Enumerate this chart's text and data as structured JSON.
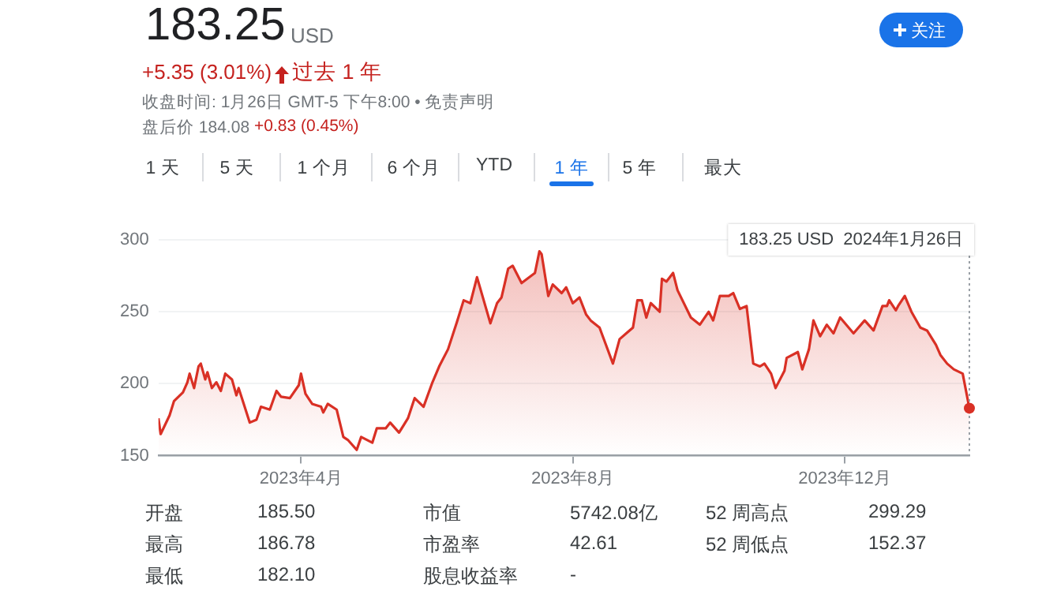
{
  "chart_data": {
    "type": "area",
    "title": "183.25",
    "annotations": [
      "USD",
      "+5.35 (3.01%)",
      "过去 1 年",
      "收盘时间: 1月26日 GMT-5 下午8:00 • 免责声明",
      "盘后价 184.08",
      "+0.83 (0.45%)",
      "关注",
      "1 天",
      "5 天",
      "1 个月",
      "6 个月",
      "YTD",
      "1 年",
      "5 年",
      "最大",
      "开盘",
      "185.50",
      "最高",
      "186.78",
      "最低",
      "182.10",
      "市值",
      "5742.08亿",
      "市盈率",
      "42.61",
      "股息收益率",
      "-",
      "52 周高点",
      "299.29",
      "52 周低点",
      "152.37",
      "183.25 USD  2024年1月26日"
    ],
    "x": [
      "2023-01-27",
      "2023-01-28",
      "2023-02-01",
      "2023-02-03",
      "2023-02-07",
      "2023-02-09",
      "2023-02-10",
      "2023-02-12",
      "2023-02-14",
      "2023-02-15",
      "2023-02-17",
      "2023-02-18",
      "2023-02-20",
      "2023-02-22",
      "2023-02-24",
      "2023-02-26",
      "2023-03-01",
      "2023-03-03",
      "2023-03-04",
      "2023-03-09",
      "2023-03-12",
      "2023-03-14",
      "2023-03-18",
      "2023-03-21",
      "2023-03-23",
      "2023-03-27",
      "2023-03-31",
      "2023-04-01",
      "2023-04-03",
      "2023-04-06",
      "2023-04-10",
      "2023-04-11",
      "2023-04-13",
      "2023-04-17",
      "2023-04-20",
      "2023-04-22",
      "2023-04-26",
      "2023-04-28",
      "2023-05-03",
      "2023-05-05",
      "2023-05-09",
      "2023-05-11",
      "2023-05-15",
      "2023-05-19",
      "2023-05-22",
      "2023-05-26",
      "2023-05-30",
      "2023-06-02",
      "2023-06-06",
      "2023-06-10",
      "2023-06-13",
      "2023-06-16",
      "2023-06-19",
      "2023-06-22",
      "2023-06-25",
      "2023-06-28",
      "2023-06-30",
      "2023-07-03",
      "2023-07-05",
      "2023-07-09",
      "2023-07-15",
      "2023-07-17",
      "2023-07-18",
      "2023-07-21",
      "2023-07-23",
      "2023-07-27",
      "2023-07-29",
      "2023-08-01",
      "2023-08-04",
      "2023-08-07",
      "2023-08-09",
      "2023-08-13",
      "2023-08-19",
      "2023-08-22",
      "2023-08-25",
      "2023-08-28",
      "2023-08-30",
      "2023-09-01",
      "2023-09-03",
      "2023-09-05",
      "2023-09-09",
      "2023-09-10",
      "2023-09-12",
      "2023-09-15",
      "2023-09-17",
      "2023-09-23",
      "2023-09-27",
      "2023-10-01",
      "2023-10-03",
      "2023-10-06",
      "2023-10-10",
      "2023-10-12",
      "2023-10-15",
      "2023-10-18",
      "2023-10-21",
      "2023-10-24",
      "2023-10-26",
      "2023-10-29",
      "2023-10-31",
      "2023-11-04",
      "2023-11-05",
      "2023-11-10",
      "2023-11-12",
      "2023-11-15",
      "2023-11-17",
      "2023-11-20",
      "2023-11-23",
      "2023-11-26",
      "2023-11-29",
      "2023-12-05",
      "2023-12-10",
      "2023-12-14",
      "2023-12-18",
      "2023-12-20",
      "2023-12-21",
      "2023-12-24",
      "2023-12-25",
      "2023-12-28",
      "2023-12-31",
      "2024-01-04",
      "2024-01-07",
      "2024-01-11",
      "2024-01-13",
      "2024-01-16",
      "2024-01-19",
      "2024-01-23",
      "2024-01-26"
    ],
    "series": [
      {
        "color": "#d93025",
        "values": [
          176,
          165,
          178,
          188,
          194,
          201,
          207,
          197,
          212,
          214,
          203,
          208,
          197,
          201,
          195,
          207,
          203,
          192,
          197,
          173,
          175,
          184,
          182,
          195,
          191,
          190,
          199,
          207,
          193,
          186,
          184,
          180,
          186,
          182,
          163,
          161,
          154,
          163,
          159,
          169,
          169,
          173,
          166,
          176,
          190,
          184,
          201,
          212,
          224,
          243,
          258,
          256,
          274,
          258,
          242,
          256,
          260,
          280,
          282,
          270,
          277,
          292,
          290,
          261,
          269,
          263,
          267,
          256,
          260,
          248,
          244,
          239,
          214,
          231,
          235,
          239,
          258,
          258,
          246,
          256,
          250,
          273,
          271,
          277,
          265,
          246,
          241,
          250,
          244,
          261,
          261,
          263,
          252,
          254,
          214,
          212,
          214,
          207,
          197,
          209,
          218,
          222,
          210,
          224,
          244,
          233,
          241,
          235,
          246,
          235,
          244,
          237,
          254,
          254,
          258,
          251,
          254,
          261,
          250,
          239,
          237,
          227,
          220,
          214,
          210,
          207,
          183
        ]
      }
    ],
    "xlim": [
      "2023-01-27",
      "2024-01-26"
    ],
    "xticks": [
      {
        "value": "2023-04-01",
        "label": "2023年4月"
      },
      {
        "value": "2023-08-01",
        "label": "2023年8月"
      },
      {
        "value": "2023-12-01",
        "label": "2023年12月"
      }
    ],
    "ylim": [
      150,
      300
    ],
    "yticks": [
      150,
      200,
      250,
      300
    ],
    "grid": "y"
  }
}
